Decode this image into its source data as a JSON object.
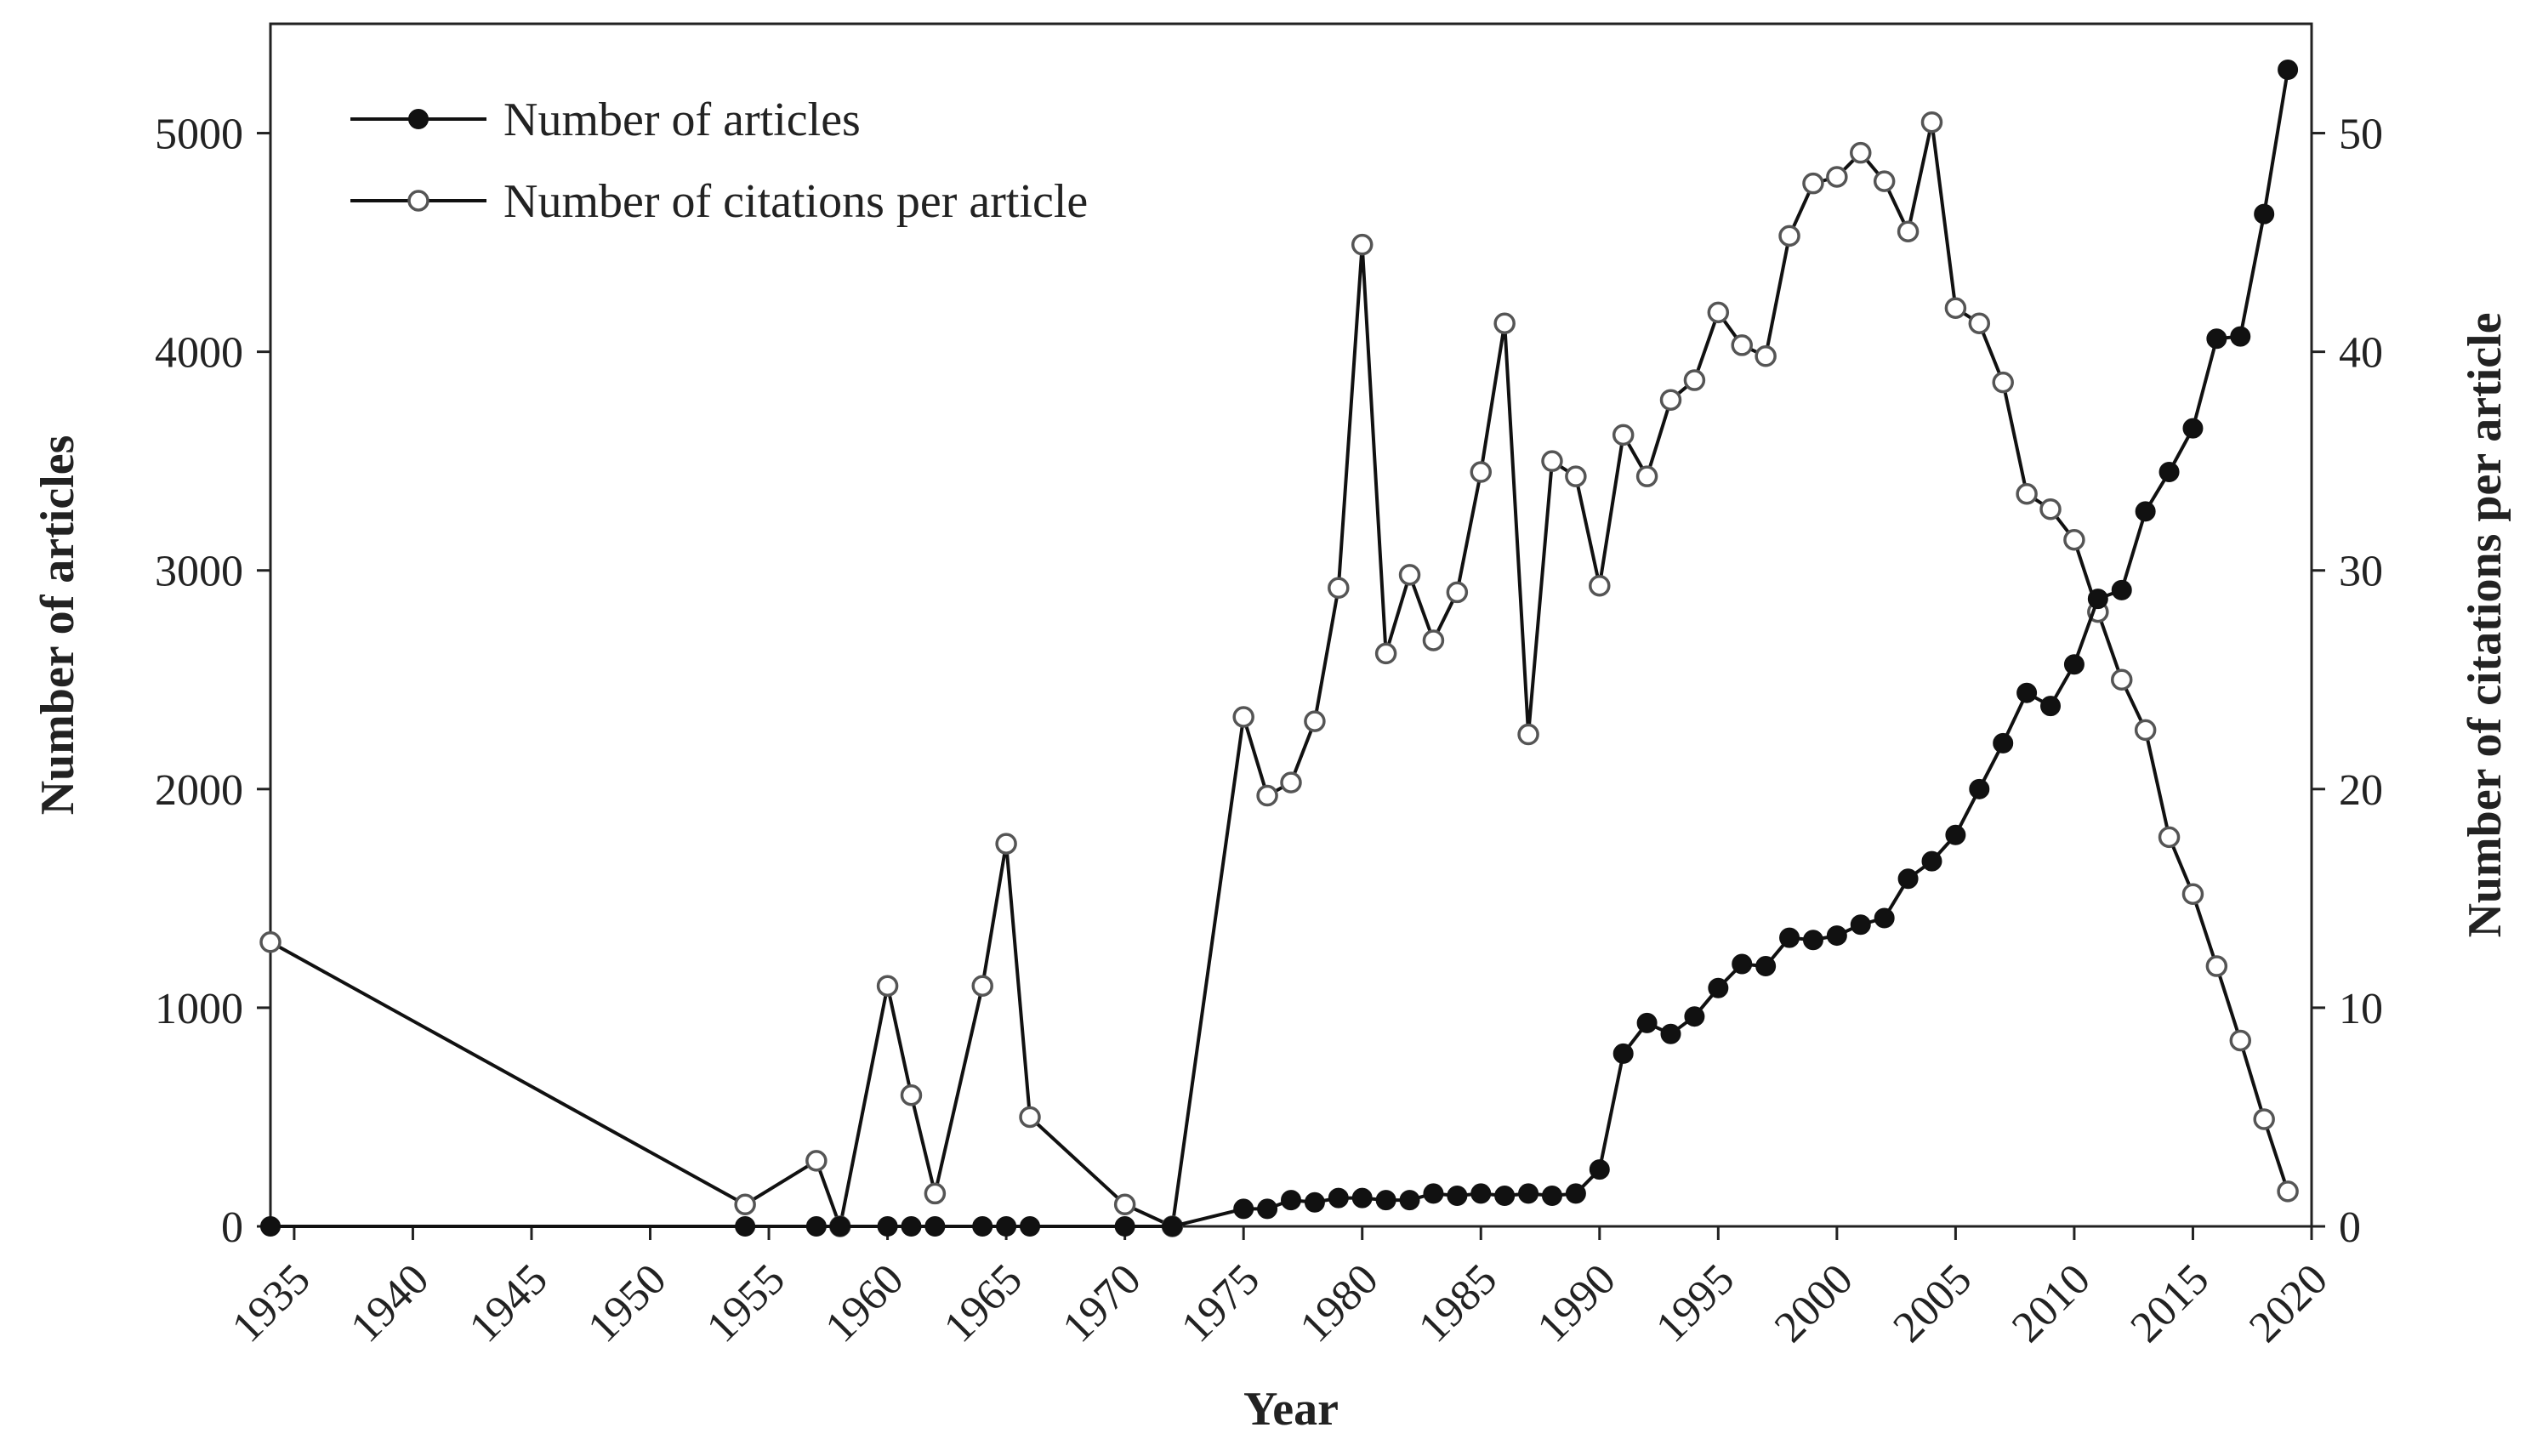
{
  "chart_data": {
    "type": "line",
    "title": "",
    "xlabel": "Year",
    "ylabel_left": "Number of articles",
    "ylabel_right": "Number of citations per article",
    "xlim": [
      1934,
      2020
    ],
    "x_ticks": [
      1935,
      1940,
      1945,
      1950,
      1955,
      1960,
      1965,
      1970,
      1975,
      1980,
      1985,
      1990,
      1995,
      2000,
      2005,
      2010,
      2015,
      2020
    ],
    "ylim_left": [
      0,
      5500
    ],
    "y_ticks_left": [
      0,
      1000,
      2000,
      3000,
      4000,
      5000
    ],
    "ylim_right": [
      0,
      55
    ],
    "y_ticks_right": [
      0,
      10,
      20,
      30,
      40,
      50
    ],
    "grid": false,
    "legend_position": "top-left",
    "series": [
      {
        "name": "Number of articles",
        "axis": "left",
        "marker": "filled-circle",
        "color": "#111111",
        "points": [
          [
            1934,
            0
          ],
          [
            1954,
            0
          ],
          [
            1957,
            0
          ],
          [
            1958,
            0
          ],
          [
            1960,
            0
          ],
          [
            1961,
            0
          ],
          [
            1962,
            0
          ],
          [
            1964,
            0
          ],
          [
            1965,
            0
          ],
          [
            1966,
            0
          ],
          [
            1970,
            0
          ],
          [
            1972,
            0
          ],
          [
            1975,
            80
          ],
          [
            1976,
            80
          ],
          [
            1977,
            120
          ],
          [
            1978,
            110
          ],
          [
            1979,
            130
          ],
          [
            1980,
            130
          ],
          [
            1981,
            120
          ],
          [
            1982,
            120
          ],
          [
            1983,
            150
          ],
          [
            1984,
            140
          ],
          [
            1985,
            150
          ],
          [
            1986,
            140
          ],
          [
            1987,
            150
          ],
          [
            1988,
            140
          ],
          [
            1989,
            150
          ],
          [
            1990,
            260
          ],
          [
            1991,
            790
          ],
          [
            1992,
            930
          ],
          [
            1993,
            880
          ],
          [
            1994,
            960
          ],
          [
            1995,
            1090
          ],
          [
            1996,
            1200
          ],
          [
            1997,
            1190
          ],
          [
            1998,
            1320
          ],
          [
            1999,
            1310
          ],
          [
            2000,
            1330
          ],
          [
            2001,
            1380
          ],
          [
            2002,
            1410
          ],
          [
            2003,
            1590
          ],
          [
            2004,
            1670
          ],
          [
            2005,
            1790
          ],
          [
            2006,
            2000
          ],
          [
            2007,
            2210
          ],
          [
            2008,
            2440
          ],
          [
            2009,
            2380
          ],
          [
            2010,
            2570
          ],
          [
            2011,
            2870
          ],
          [
            2012,
            2910
          ],
          [
            2013,
            3270
          ],
          [
            2014,
            3450
          ],
          [
            2015,
            3650
          ],
          [
            2016,
            4060
          ],
          [
            2017,
            4070
          ],
          [
            2018,
            4630
          ],
          [
            2019,
            5290
          ]
        ]
      },
      {
        "name": "Number of citations per article",
        "axis": "right",
        "marker": "open-circle",
        "color": "#111111",
        "points": [
          [
            1934,
            13.0
          ],
          [
            1954,
            1.0
          ],
          [
            1957,
            3.0
          ],
          [
            1958,
            0.0
          ],
          [
            1960,
            11.0
          ],
          [
            1961,
            6.0
          ],
          [
            1962,
            1.5
          ],
          [
            1964,
            11.0
          ],
          [
            1965,
            17.5
          ],
          [
            1966,
            5.0
          ],
          [
            1970,
            1.0
          ],
          [
            1972,
            0.0
          ],
          [
            1975,
            23.3
          ],
          [
            1976,
            19.7
          ],
          [
            1977,
            20.3
          ],
          [
            1978,
            23.1
          ],
          [
            1979,
            29.2
          ],
          [
            1980,
            44.9
          ],
          [
            1981,
            26.2
          ],
          [
            1982,
            29.8
          ],
          [
            1983,
            26.8
          ],
          [
            1984,
            29.0
          ],
          [
            1985,
            34.5
          ],
          [
            1986,
            41.3
          ],
          [
            1987,
            22.5
          ],
          [
            1988,
            35.0
          ],
          [
            1989,
            34.3
          ],
          [
            1990,
            29.3
          ],
          [
            1991,
            36.2
          ],
          [
            1992,
            34.3
          ],
          [
            1993,
            37.8
          ],
          [
            1994,
            38.7
          ],
          [
            1995,
            41.8
          ],
          [
            1996,
            40.3
          ],
          [
            1997,
            39.8
          ],
          [
            1998,
            45.3
          ],
          [
            1999,
            47.7
          ],
          [
            2000,
            48.0
          ],
          [
            2001,
            49.1
          ],
          [
            2002,
            47.8
          ],
          [
            2003,
            45.5
          ],
          [
            2004,
            50.5
          ],
          [
            2005,
            42.0
          ],
          [
            2006,
            41.3
          ],
          [
            2007,
            38.6
          ],
          [
            2008,
            33.5
          ],
          [
            2009,
            32.8
          ],
          [
            2010,
            31.4
          ],
          [
            2011,
            28.1
          ],
          [
            2012,
            25.0
          ],
          [
            2013,
            22.7
          ],
          [
            2014,
            17.8
          ],
          [
            2015,
            15.2
          ],
          [
            2016,
            11.9
          ],
          [
            2017,
            8.5
          ],
          [
            2018,
            4.9
          ],
          [
            2019,
            1.6
          ]
        ]
      }
    ]
  }
}
